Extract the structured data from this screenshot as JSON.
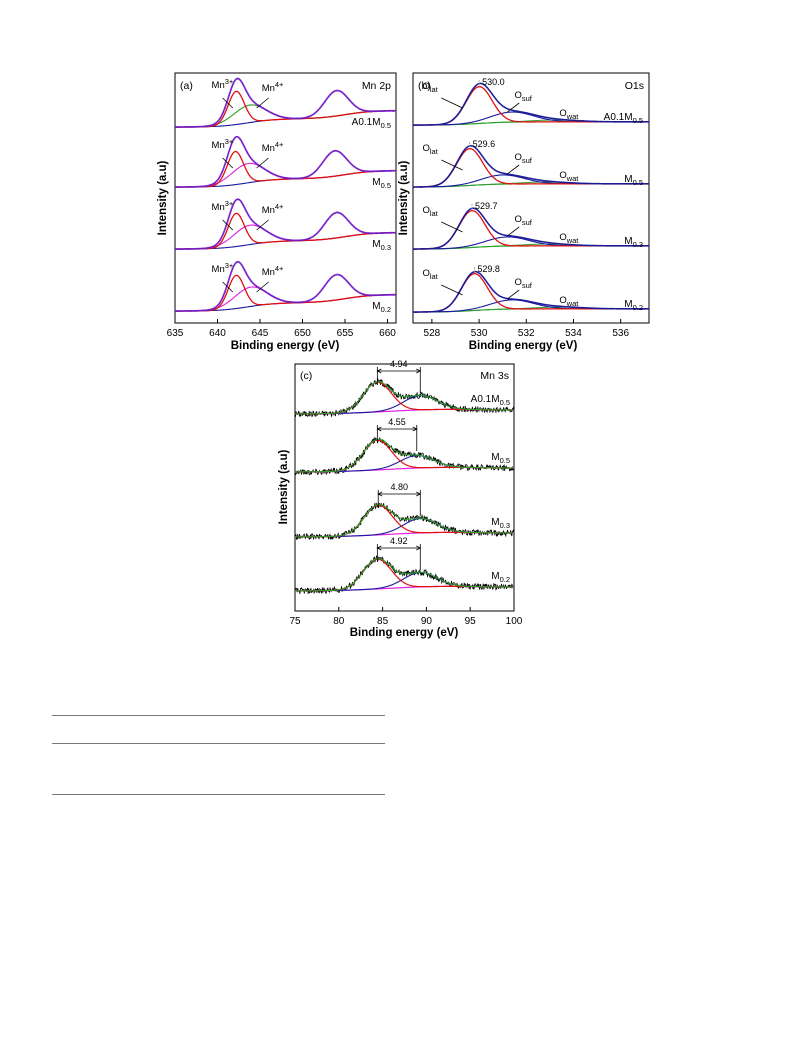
{
  "colors": {
    "measured_spectrum": "#000000",
    "envelope_fit": "#7b1fd6",
    "mn3_component": "#e01010",
    "mn4_component": "#e020e0",
    "mn_green_component": "#2aa02a",
    "background": "#1a1aa0",
    "o_lat_component": "#e01010",
    "o_suf_component": "#1a1aa0",
    "o_wat_component": "#2aa02a",
    "o_fit": "#1a1aa0",
    "mn3s_first_peak": "#e01010",
    "mn3s_second_peak": "#1a1aa0",
    "mn3s_background": "#e020e0",
    "mn3s_envelope": "#2aa02a",
    "marker": "#999999"
  },
  "chart_data": [
    {
      "panel": "(a)",
      "title": "Mn 2p",
      "type": "line",
      "xlabel": "Binding energy (eV)",
      "ylabel": "Intensity (a.u)",
      "xlim": [
        635,
        661
      ],
      "xticks": [
        635,
        640,
        645,
        650,
        655,
        660
      ],
      "yaxis": "stacked, arbitrary units, no tick labels",
      "samples": [
        {
          "name": "A0.1M",
          "sub": "0.5",
          "peaks": {
            "Mn3+": 642.2,
            "Mn4+": 643.8,
            "Mn2p1/2": 654.0
          }
        },
        {
          "name": "M",
          "sub": "0.5",
          "peaks": {
            "Mn3+": 642.1,
            "Mn4+": 643.6,
            "Mn2p1/2": 653.8
          }
        },
        {
          "name": "M",
          "sub": "0.3",
          "peaks": {
            "Mn3+": 642.2,
            "Mn4+": 643.8,
            "Mn2p1/2": 654.0
          }
        },
        {
          "name": "M",
          "sub": "0.2",
          "peaks": {
            "Mn3+": 642.2,
            "Mn4+": 643.9,
            "Mn2p1/2": 654.0
          }
        }
      ],
      "species_labels": [
        "Mn",
        "Mn"
      ],
      "species_charges": [
        "3+",
        "4+"
      ]
    },
    {
      "panel": "(b)",
      "title": "O1s",
      "type": "line",
      "xlabel": "Binding energy (eV)",
      "ylabel": "Intensity (a.u)",
      "xlim": [
        527.2,
        537.2
      ],
      "xticks": [
        528,
        530,
        532,
        534,
        536
      ],
      "yaxis": "stacked, arbitrary units, no tick labels",
      "species": [
        {
          "base": "O",
          "sub": "lat"
        },
        {
          "base": "O",
          "sub": "suf"
        },
        {
          "base": "O",
          "sub": "wat"
        }
      ],
      "samples": [
        {
          "name": "A0.1M",
          "sub": "0.5",
          "lattice_peak": "530.0",
          "o_lat": 530.0,
          "o_suf": 531.4,
          "o_wat": 533.2
        },
        {
          "name": "M",
          "sub": "0.5",
          "lattice_peak": "529.6",
          "o_lat": 529.6,
          "o_suf": 531.0,
          "o_wat": 532.8
        },
        {
          "name": "M",
          "sub": "0.3",
          "lattice_peak": "529.7",
          "o_lat": 529.7,
          "o_suf": 531.2,
          "o_wat": 532.9
        },
        {
          "name": "M",
          "sub": "0.2",
          "lattice_peak": "529.8",
          "o_lat": 529.8,
          "o_suf": 531.4,
          "o_wat": 533.4
        }
      ]
    },
    {
      "panel": "(c)",
      "title": "Mn 3s",
      "type": "line",
      "xlabel": "Binding energy (eV)",
      "ylabel": "Intensity (a.u)",
      "xlim": [
        75,
        100
      ],
      "xticks": [
        75,
        80,
        85,
        90,
        95,
        100
      ],
      "yaxis": "stacked, arbitrary units, no tick labels",
      "samples": [
        {
          "name": "A0.1M",
          "sub": "0.5",
          "splitting": "4.94",
          "peak1": 84.4,
          "peak2": 89.3
        },
        {
          "name": "M",
          "sub": "0.5",
          "splitting": "4.55",
          "peak1": 84.4,
          "peak2": 88.9
        },
        {
          "name": "M",
          "sub": "0.3",
          "splitting": "4.80",
          "peak1": 84.5,
          "peak2": 89.3
        },
        {
          "name": "M",
          "sub": "0.2",
          "splitting": "4.92",
          "peak1": 84.4,
          "peak2": 89.3
        }
      ]
    }
  ]
}
